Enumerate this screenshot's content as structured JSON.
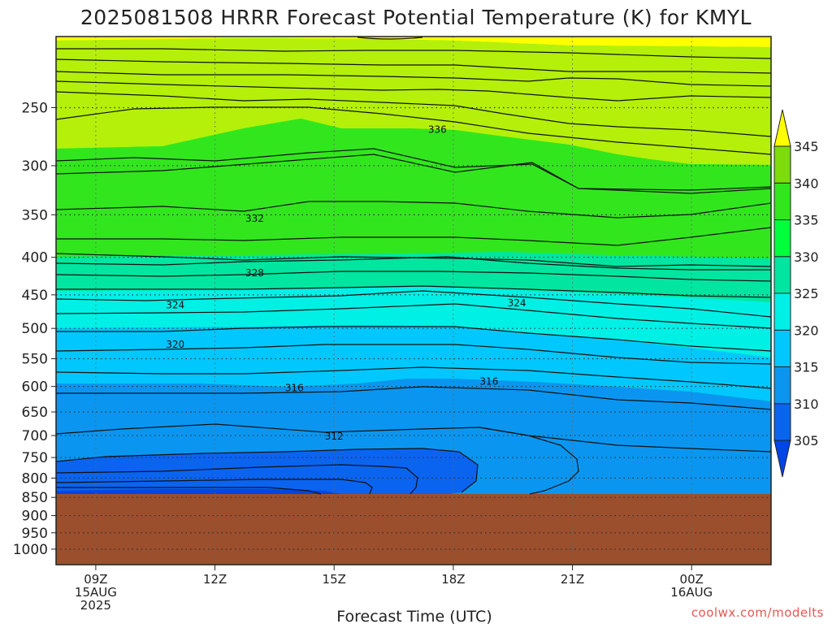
{
  "chart_data": {
    "type": "contour",
    "title": "2025081508 HRRR Forecast Potential Temperature (K) for KMYL",
    "xlabel": "Forecast Time (UTC)",
    "credit": "coolwx.com/modelts",
    "x_ticks": [
      {
        "hour": 9,
        "lines": [
          "09Z",
          "15AUG",
          "2025"
        ]
      },
      {
        "hour": 12,
        "lines": [
          "12Z"
        ]
      },
      {
        "hour": 15,
        "lines": [
          "15Z"
        ]
      },
      {
        "hour": 18,
        "lines": [
          "18Z"
        ]
      },
      {
        "hour": 21,
        "lines": [
          "21Z"
        ]
      },
      {
        "hour": 24,
        "lines": [
          "00Z",
          "16AUG"
        ]
      }
    ],
    "x_range_hours": [
      8,
      26
    ],
    "y_axis": "pressure (hPa), log scale, inverted",
    "y_ticks": [
      250,
      300,
      350,
      400,
      450,
      500,
      550,
      600,
      650,
      700,
      750,
      800,
      850,
      900,
      950,
      1000
    ],
    "y_range": [
      200,
      1050
    ],
    "surface_pressure": 850,
    "surface_color": "#9b4f2d",
    "colorbar_levels": [
      305,
      310,
      315,
      320,
      325,
      330,
      335,
      340,
      345
    ],
    "fill_colors": [
      "#0046e6",
      "#0a64f0",
      "#0a96f0",
      "#00c8ff",
      "#00f0e6",
      "#00e6a0",
      "#00ff3c",
      "#32e61e",
      "#7ddc0a",
      "#b4f00a",
      "#ffff00"
    ],
    "contour_interval_K": 2,
    "contour_labels": [
      {
        "value": 336,
        "hour": 17.6,
        "pressure": 268
      },
      {
        "value": 332,
        "hour": 13.0,
        "pressure": 354
      },
      {
        "value": 328,
        "hour": 13.0,
        "pressure": 420
      },
      {
        "value": 324,
        "hour": 11.0,
        "pressure": 465
      },
      {
        "value": 324,
        "hour": 19.6,
        "pressure": 462
      },
      {
        "value": 320,
        "hour": 11.0,
        "pressure": 526
      },
      {
        "value": 316,
        "hour": 14.0,
        "pressure": 603
      },
      {
        "value": 316,
        "hour": 18.9,
        "pressure": 591
      },
      {
        "value": 312,
        "hour": 15.0,
        "pressure": 702
      }
    ]
  }
}
